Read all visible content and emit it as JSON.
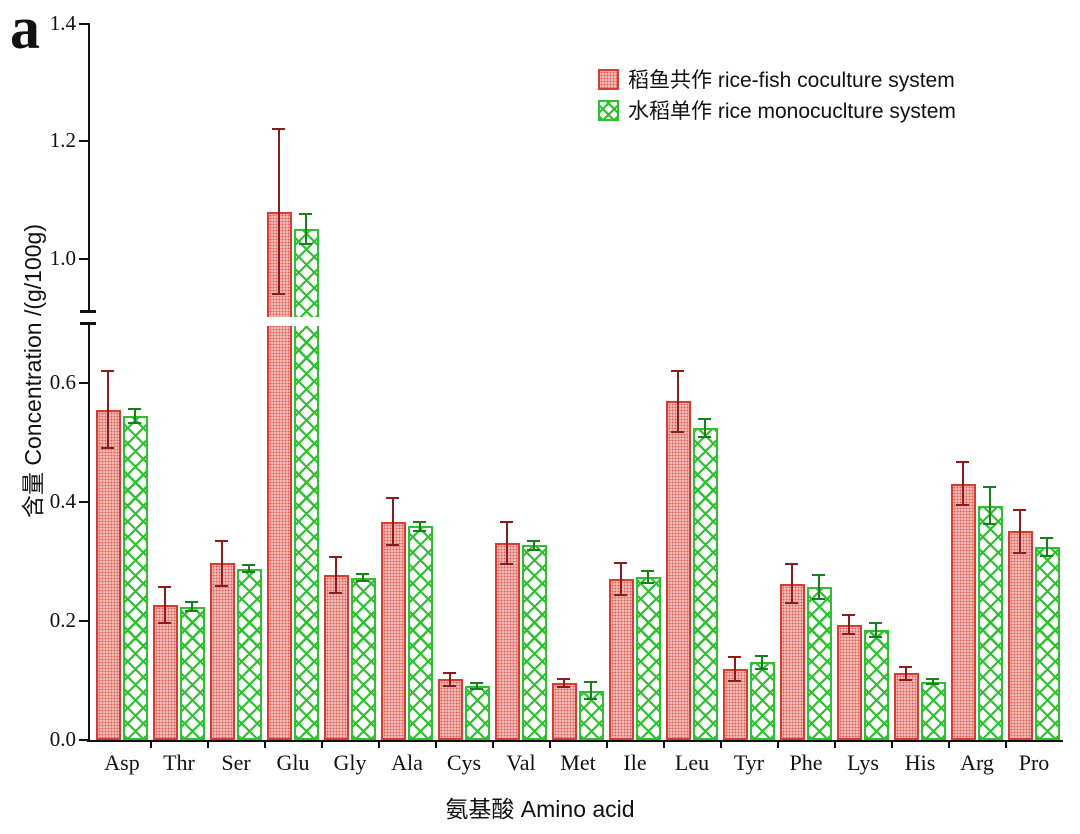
{
  "panel_label": "a",
  "legend": [
    {
      "label": "稻鱼共作 rice-fish coculture system",
      "series_key": "coculture"
    },
    {
      "label": "水稻单作 rice monocuclture system",
      "series_key": "monoculture"
    }
  ],
  "colors": {
    "coculture_border": "#d83a34",
    "coculture_error": "#8c1c1c",
    "monoculture_border": "#2ec02e",
    "monoculture_error": "#1c7d1c",
    "axis": "#111111"
  },
  "chart_data": {
    "type": "bar",
    "title": "",
    "xlabel": "氨基酸 Amino acid",
    "ylabel": "含量 Concentration /(g/100g)",
    "ylim": [
      0,
      1.4
    ],
    "axis_break": [
      0.7,
      0.9
    ],
    "grid": false,
    "legend_position": "top-right",
    "y_ticks_lower": [
      0.0,
      0.2,
      0.4,
      0.6
    ],
    "y_ticks_upper": [
      1.0,
      1.2,
      1.4
    ],
    "categories": [
      "Asp",
      "Thr",
      "Ser",
      "Glu",
      "Gly",
      "Ala",
      "Cys",
      "Val",
      "Met",
      "Ile",
      "Leu",
      "Tyr",
      "Phe",
      "Lys",
      "His",
      "Arg",
      "Pro"
    ],
    "series": [
      {
        "name": "稻鱼共作 rice-fish coculture system",
        "key": "coculture",
        "values": [
          0.555,
          0.227,
          0.297,
          1.08,
          0.277,
          0.367,
          0.102,
          0.331,
          0.096,
          0.271,
          0.569,
          0.12,
          0.263,
          0.194,
          0.112,
          0.431,
          0.351
        ],
        "errors": [
          0.065,
          0.03,
          0.038,
          0.14,
          0.03,
          0.04,
          0.011,
          0.036,
          0.007,
          0.027,
          0.052,
          0.02,
          0.033,
          0.016,
          0.011,
          0.036,
          0.036
        ]
      },
      {
        "name": "水稻单作 rice monocuclture system",
        "key": "monoculture",
        "values": [
          0.545,
          0.224,
          0.288,
          1.05,
          0.273,
          0.359,
          0.091,
          0.327,
          0.083,
          0.274,
          0.524,
          0.131,
          0.257,
          0.185,
          0.098,
          0.394,
          0.324
        ],
        "errors": [
          0.012,
          0.008,
          0.006,
          0.025,
          0.006,
          0.008,
          0.005,
          0.007,
          0.014,
          0.01,
          0.015,
          0.011,
          0.02,
          0.012,
          0.004,
          0.031,
          0.015
        ]
      }
    ]
  }
}
